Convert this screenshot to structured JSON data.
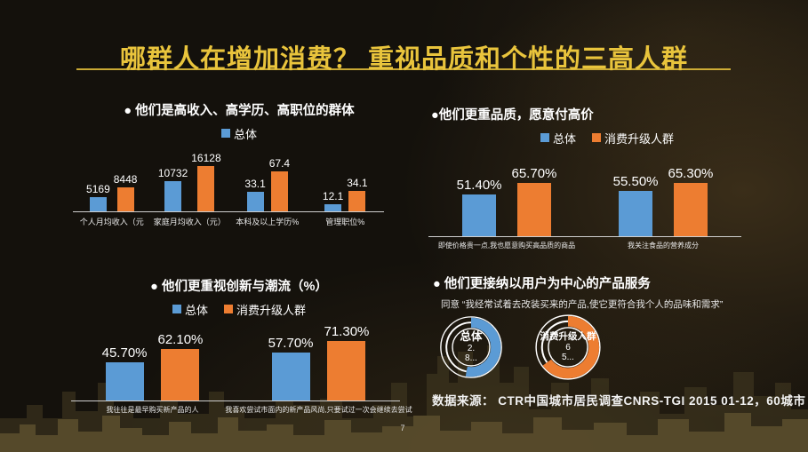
{
  "slide": {
    "title": "哪群人在增加消费？ 重视品质和个性的三高人群",
    "source": "数据来源：  CTR中国城市居民调查CNRS-TGI  2015 01-12，60城市",
    "page_number": "7"
  },
  "colors": {
    "title_gold": "#e9c43c",
    "series_total": "#5b9bd5",
    "series_upgrade": "#ed7d31",
    "axis_line": "#cfcfcf",
    "text": "#ffffff",
    "background": "#14110c",
    "skyline": "#564a28"
  },
  "chart_data": [
    {
      "id": "income-education-position",
      "type": "bar",
      "title": "● 他们是高收入、高学历、高职位的群体",
      "legend": [
        "总体"
      ],
      "categories": [
        "个人月均收入（元",
        "家庭月均收入（元）",
        "本科及以上学历%",
        "管理职位%"
      ],
      "series": [
        {
          "name": "总体",
          "values": [
            5169,
            10732,
            33.1,
            12.1
          ]
        },
        {
          "name": "消费升级人群",
          "values": [
            8448,
            16128,
            67.4,
            34.1
          ]
        }
      ],
      "value_labels": [
        [
          "5169",
          "8448"
        ],
        [
          "10732",
          "16128"
        ],
        [
          "33.1",
          "67.4"
        ],
        [
          "12.1",
          "34.1"
        ]
      ],
      "grid": false,
      "legend_position": "top"
    },
    {
      "id": "quality-willing-to-pay",
      "type": "bar",
      "title": "●他们更重品质，愿意付高价",
      "legend": [
        "总体",
        "消费升级人群"
      ],
      "categories": [
        "即使价格贵一点,我也愿意购买高品质的商品",
        "我关注食品的营养成分"
      ],
      "series": [
        {
          "name": "总体",
          "values": [
            51.4,
            55.5
          ]
        },
        {
          "name": "消费升级人群",
          "values": [
            65.7,
            65.3
          ]
        }
      ],
      "value_labels": [
        [
          "51.40%",
          "65.70%"
        ],
        [
          "55.50%",
          "65.30%"
        ]
      ],
      "unit": "%",
      "grid": false,
      "legend_position": "top"
    },
    {
      "id": "innovation-and-trend",
      "type": "bar",
      "title": "● 他们更重视创新与潮流（%）",
      "legend": [
        "总体",
        "消费升级人群"
      ],
      "categories": [
        "我往往是最早购买新产品的人",
        "我喜欢尝试市面内的新产品风尚,只要试过一次会继续去尝试"
      ],
      "series": [
        {
          "name": "总体",
          "values": [
            45.7,
            57.7
          ]
        },
        {
          "name": "消费升级人群",
          "values": [
            62.1,
            71.3
          ]
        }
      ],
      "value_labels": [
        [
          "45.70%",
          "62.10%"
        ],
        [
          "57.70%",
          "71.30%"
        ]
      ],
      "unit": "%",
      "grid": false,
      "legend_position": "top"
    },
    {
      "id": "user-centric-products",
      "type": "pie",
      "title": "● 他们更接纳以用户为中心的产品服务",
      "subtitle": "同意 “我经常试着去改装买来的产品,使它更符合我个人的品味和需求”",
      "donuts": [
        {
          "label": "总体",
          "value_lines": [
            "2.",
            "8..."
          ],
          "percent_est": 53
        },
        {
          "label": "消费升级人群",
          "value_lines": [
            "6",
            "5..."
          ],
          "percent_est": 65
        }
      ]
    }
  ]
}
